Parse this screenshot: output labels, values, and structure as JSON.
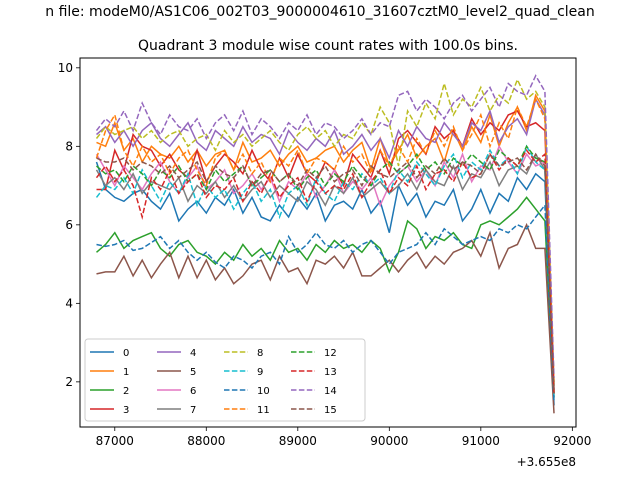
{
  "chart_data": {
    "type": "line",
    "suptitle": "n file: modeM0/AS1C06_002T03_9000004610_31607cztM0_level2_quad_clean",
    "title": "Quadrant 3 module wise count rates with 100.0s bins.",
    "xlabel": "",
    "ylabel": "",
    "offset_text": "+3.655e8",
    "xlim": [
      86620,
      92040
    ],
    "ylim": [
      0.85,
      10.25
    ],
    "x_ticks": [
      87000,
      88000,
      89000,
      90000,
      91000,
      92000
    ],
    "x_tick_labels": [
      "87000",
      "88000",
      "89000",
      "90000",
      "91000",
      "92000"
    ],
    "y_ticks": [
      2,
      4,
      6,
      8,
      10
    ],
    "y_tick_labels": [
      "2",
      "4",
      "6",
      "8",
      "10"
    ],
    "x": {
      "start": 86800,
      "step": 100,
      "count": 51
    },
    "legend_placement": "lower-left",
    "legend_columns": 4,
    "series": [
      {
        "name": "0",
        "color": "#1f77b4",
        "dash": "solid",
        "values": [
          7.6,
          6.9,
          6.7,
          6.6,
          6.8,
          6.9,
          6.6,
          6.4,
          6.8,
          6.1,
          6.4,
          6.6,
          6.3,
          6.7,
          6.5,
          6.9,
          6.3,
          6.7,
          6.2,
          6.1,
          6.5,
          6.2,
          6.7,
          6.4,
          6.8,
          6.1,
          6.5,
          6.6,
          6.4,
          6.9,
          6.3,
          6.6,
          5.8,
          7.0,
          6.5,
          6.8,
          6.2,
          6.6,
          6.5,
          6.9,
          6.1,
          6.4,
          6.9,
          6.3,
          6.8,
          6.6,
          7.2,
          6.9,
          7.3,
          7.1,
          1.4
        ]
      },
      {
        "name": "1",
        "color": "#ff7f0e",
        "dash": "solid",
        "values": [
          8.1,
          8.0,
          8.6,
          7.9,
          8.2,
          7.6,
          8.0,
          7.8,
          7.7,
          8.0,
          7.6,
          7.9,
          7.5,
          7.8,
          7.9,
          7.4,
          8.1,
          7.6,
          7.7,
          7.9,
          7.5,
          7.8,
          8.0,
          7.6,
          7.7,
          7.9,
          8.0,
          7.6,
          7.9,
          8.1,
          7.4,
          8.2,
          7.5,
          7.9,
          8.3,
          7.7,
          8.0,
          8.2,
          7.6,
          8.4,
          7.9,
          8.5,
          8.1,
          8.8,
          8.0,
          8.6,
          9.0,
          8.4,
          9.3,
          8.9,
          1.7
        ]
      },
      {
        "name": "2",
        "color": "#2ca02c",
        "dash": "solid",
        "values": [
          5.3,
          5.5,
          5.8,
          5.4,
          5.6,
          5.7,
          5.8,
          5.4,
          5.2,
          5.5,
          5.6,
          5.3,
          5.2,
          5.0,
          5.3,
          5.1,
          5.5,
          5.2,
          5.4,
          5.1,
          5.6,
          5.3,
          5.4,
          5.1,
          5.5,
          5.3,
          5.6,
          5.4,
          5.5,
          5.3,
          5.6,
          5.4,
          4.8,
          5.3,
          6.1,
          5.9,
          5.4,
          5.7,
          5.6,
          5.8,
          5.5,
          5.4,
          6.0,
          6.1,
          6.0,
          6.2,
          6.4,
          6.7,
          6.4,
          6.1,
          1.6
        ]
      },
      {
        "name": "3",
        "color": "#d62728",
        "dash": "solid",
        "values": [
          6.9,
          6.9,
          7.9,
          7.4,
          8.3,
          8.0,
          7.9,
          7.5,
          7.8,
          7.4,
          7.2,
          7.9,
          7.1,
          7.5,
          7.8,
          7.6,
          7.3,
          7.9,
          7.4,
          7.1,
          7.7,
          7.2,
          7.8,
          7.3,
          7.1,
          7.6,
          7.4,
          7.0,
          7.8,
          7.5,
          7.2,
          7.9,
          7.3,
          8.2,
          8.4,
          8.1,
          7.8,
          8.5,
          8.2,
          8.4,
          8.0,
          8.7,
          8.3,
          8.6,
          8.4,
          8.8,
          8.9,
          8.5,
          8.6,
          8.4,
          1.8
        ]
      },
      {
        "name": "4",
        "color": "#9467bd",
        "dash": "solid",
        "values": [
          8.3,
          8.5,
          8.1,
          8.4,
          8.0,
          8.4,
          8.6,
          8.2,
          8.0,
          8.3,
          8.6,
          8.1,
          7.9,
          8.4,
          8.2,
          8.0,
          8.5,
          8.1,
          8.3,
          8.2,
          7.8,
          8.4,
          8.1,
          7.9,
          8.2,
          8.0,
          8.4,
          7.8,
          8.0,
          8.3,
          7.9,
          8.2,
          7.7,
          8.4,
          8.0,
          8.5,
          8.2,
          8.1,
          8.6,
          8.3,
          8.0,
          8.6,
          8.4,
          8.9,
          8.1,
          8.5,
          8.7,
          8.3,
          9.2,
          8.8,
          1.9
        ]
      },
      {
        "name": "5",
        "color": "#8c564b",
        "dash": "solid",
        "values": [
          4.75,
          4.8,
          4.8,
          5.2,
          4.7,
          5.1,
          4.65,
          5.0,
          5.3,
          4.65,
          5.2,
          4.65,
          5.1,
          4.6,
          4.9,
          4.5,
          4.7,
          5.0,
          5.1,
          4.6,
          5.2,
          4.8,
          4.9,
          4.5,
          5.1,
          5.0,
          5.2,
          4.9,
          5.3,
          4.7,
          4.7,
          4.9,
          5.1,
          4.8,
          5.1,
          5.3,
          4.9,
          5.2,
          5.0,
          5.3,
          5.4,
          5.6,
          5.2,
          5.8,
          4.9,
          5.4,
          5.5,
          6.0,
          5.4,
          5.4,
          1.2
        ]
      },
      {
        "name": "6",
        "color": "#e377c2",
        "dash": "solid",
        "values": [
          7.8,
          7.4,
          7.0,
          7.5,
          7.2,
          6.9,
          7.3,
          7.6,
          7.1,
          6.8,
          7.2,
          7.5,
          6.9,
          7.1,
          7.4,
          6.8,
          7.0,
          7.3,
          6.9,
          7.2,
          6.6,
          7.1,
          6.9,
          7.3,
          6.7,
          7.0,
          7.4,
          6.8,
          7.1,
          6.9,
          7.2,
          6.5,
          7.0,
          7.3,
          7.5,
          7.1,
          7.4,
          7.0,
          7.6,
          7.2,
          7.8,
          7.1,
          7.5,
          7.4,
          8.0,
          7.6,
          7.3,
          7.8,
          7.5,
          7.6,
          1.8
        ]
      },
      {
        "name": "7",
        "color": "#7f7f7f",
        "dash": "solid",
        "values": [
          7.4,
          7.0,
          7.2,
          6.9,
          7.3,
          6.8,
          7.1,
          7.0,
          6.9,
          7.2,
          6.6,
          7.0,
          6.8,
          7.1,
          6.7,
          7.0,
          6.6,
          6.9,
          7.1,
          6.7,
          7.0,
          6.8,
          6.6,
          7.1,
          6.9,
          6.5,
          7.0,
          6.8,
          7.2,
          6.7,
          6.9,
          7.1,
          6.8,
          7.0,
          7.3,
          6.9,
          7.4,
          7.1,
          7.0,
          7.5,
          6.9,
          7.3,
          7.2,
          7.6,
          7.0,
          7.4,
          7.5,
          7.3,
          7.8,
          7.4,
          1.7
        ]
      },
      {
        "name": "8",
        "color": "#bcbd22",
        "dash": "dashed",
        "values": [
          8.2,
          8.5,
          8.3,
          8.4,
          8.5,
          8.2,
          8.4,
          8.1,
          8.3,
          8.4,
          8.0,
          8.2,
          8.3,
          7.9,
          8.4,
          8.1,
          8.3,
          8.0,
          8.2,
          8.4,
          8.1,
          7.9,
          8.3,
          8.5,
          8.2,
          8.4,
          8.0,
          8.3,
          8.2,
          8.6,
          8.3,
          9.0,
          8.6,
          7.5,
          8.9,
          8.5,
          9.1,
          8.7,
          9.6,
          8.8,
          9.2,
          9.0,
          9.5,
          8.9,
          9.3,
          9.1,
          9.7,
          9.2,
          9.4,
          9.0,
          1.9
        ]
      },
      {
        "name": "9",
        "color": "#17becf",
        "dash": "dashed",
        "values": [
          6.7,
          7.0,
          6.9,
          7.2,
          6.8,
          7.4,
          7.0,
          6.6,
          7.1,
          6.8,
          7.3,
          6.5,
          7.0,
          6.7,
          6.9,
          6.4,
          6.8,
          7.1,
          6.6,
          6.9,
          6.2,
          6.8,
          7.0,
          6.5,
          7.2,
          6.8,
          6.6,
          7.1,
          6.9,
          7.3,
          7.0,
          7.2,
          6.8,
          7.4,
          7.1,
          7.6,
          7.3,
          7.0,
          7.5,
          7.8,
          7.2,
          7.6,
          7.4,
          7.9,
          7.5,
          7.7,
          7.3,
          8.0,
          7.6,
          7.4,
          1.6
        ]
      },
      {
        "name": "10",
        "color": "#1f77b4",
        "dash": "dashed",
        "values": [
          5.5,
          5.45,
          5.5,
          5.6,
          5.35,
          5.4,
          5.55,
          5.7,
          5.4,
          5.6,
          5.3,
          5.1,
          5.3,
          5.05,
          4.9,
          5.2,
          5.1,
          4.9,
          5.2,
          5.3,
          5.0,
          5.7,
          5.3,
          5.5,
          5.8,
          5.5,
          5.4,
          5.6,
          5.3,
          5.5,
          5.6,
          5.3,
          5.0,
          5.3,
          5.4,
          5.5,
          5.8,
          5.5,
          5.9,
          5.7,
          5.5,
          5.6,
          5.7,
          5.6,
          5.9,
          5.8,
          6.0,
          5.9,
          6.2,
          6.5,
          1.5
        ]
      },
      {
        "name": "11",
        "color": "#ff7f0e",
        "dash": "dashed",
        "values": [
          7.7,
          8.4,
          8.8,
          7.9,
          7.5,
          8.0,
          7.6,
          7.8,
          7.3,
          7.7,
          7.9,
          7.4,
          7.0,
          7.7,
          7.9,
          7.4,
          7.8,
          7.3,
          7.6,
          7.1,
          7.7,
          7.5,
          7.9,
          7.3,
          7.7,
          7.6,
          7.4,
          8.0,
          7.6,
          7.8,
          7.3,
          7.9,
          7.5,
          8.0,
          7.6,
          8.2,
          7.8,
          8.4,
          8.0,
          8.5,
          7.9,
          8.3,
          8.8,
          8.0,
          8.6,
          8.2,
          9.0,
          8.5,
          9.2,
          8.7,
          2.0
        ]
      },
      {
        "name": "12",
        "color": "#2ca02c",
        "dash": "dashed",
        "values": [
          7.5,
          7.3,
          7.4,
          7.1,
          7.5,
          7.3,
          7.0,
          7.4,
          7.2,
          7.5,
          7.1,
          7.3,
          6.9,
          7.4,
          7.1,
          7.3,
          7.5,
          7.0,
          7.2,
          7.4,
          7.1,
          7.3,
          6.9,
          7.2,
          7.4,
          7.0,
          7.3,
          7.1,
          7.5,
          7.2,
          7.0,
          7.4,
          7.6,
          7.3,
          7.5,
          7.8,
          7.4,
          7.6,
          7.3,
          7.7,
          7.5,
          7.8,
          7.6,
          7.4,
          7.9,
          7.7,
          7.5,
          8.0,
          7.7,
          7.6,
          1.7
        ]
      },
      {
        "name": "13",
        "color": "#d62728",
        "dash": "dashed",
        "values": [
          7.2,
          7.5,
          7.1,
          7.4,
          7.0,
          6.2,
          7.2,
          6.9,
          7.4,
          6.8,
          7.1,
          7.3,
          6.7,
          7.0,
          6.9,
          7.2,
          6.6,
          7.1,
          6.8,
          7.3,
          6.7,
          7.0,
          7.2,
          6.6,
          7.1,
          6.8,
          7.0,
          6.9,
          7.3,
          6.7,
          7.1,
          7.4,
          6.8,
          7.2,
          7.0,
          7.5,
          6.9,
          7.3,
          7.4,
          7.1,
          7.6,
          7.2,
          7.3,
          7.8,
          7.4,
          7.7,
          7.5,
          7.9,
          7.6,
          7.8,
          1.7
        ]
      },
      {
        "name": "14",
        "color": "#9467bd",
        "dash": "dashed",
        "values": [
          8.4,
          8.7,
          8.5,
          8.9,
          8.4,
          9.1,
          8.6,
          8.3,
          8.8,
          8.5,
          8.4,
          8.7,
          8.2,
          8.6,
          8.8,
          8.4,
          8.9,
          8.3,
          8.7,
          8.5,
          8.2,
          8.6,
          8.4,
          8.8,
          8.3,
          8.6,
          8.5,
          8.2,
          8.4,
          8.7,
          8.3,
          8.6,
          8.5,
          9.3,
          9.4,
          8.9,
          9.2,
          9.0,
          8.7,
          9.1,
          9.3,
          8.9,
          9.2,
          9.5,
          9.0,
          9.6,
          9.4,
          9.3,
          9.8,
          9.4,
          2.1
        ]
      },
      {
        "name": "15",
        "color": "#8c564b",
        "dash": "dashed",
        "values": [
          7.7,
          7.6,
          7.6,
          7.7,
          7.4,
          7.6,
          7.5,
          7.3,
          7.5,
          7.2,
          7.4,
          7.6,
          7.1,
          7.5,
          7.3,
          7.2,
          7.5,
          7.0,
          7.3,
          7.4,
          7.1,
          7.3,
          7.0,
          7.4,
          7.2,
          7.5,
          7.1,
          7.3,
          7.4,
          7.0,
          7.5,
          7.3,
          7.2,
          7.4,
          7.6,
          7.2,
          7.5,
          7.3,
          7.7,
          7.4,
          7.6,
          7.5,
          7.3,
          7.8,
          7.5,
          7.6,
          7.7,
          7.4,
          7.8,
          7.5,
          1.7
        ]
      }
    ]
  }
}
